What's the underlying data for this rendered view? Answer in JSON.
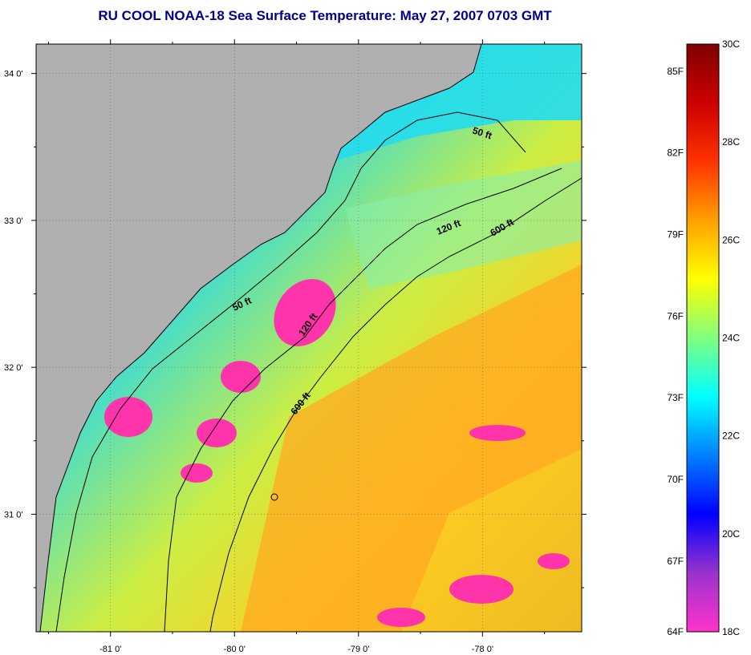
{
  "title": "RU COOL  NOAA-18  Sea Surface Temperature:  May 27, 2007 0703 GMT",
  "map": {
    "lat_ticks": [
      {
        "label": "34 0'",
        "value": 34
      },
      {
        "label": "33 0'",
        "value": 33
      },
      {
        "label": "32 0'",
        "value": 32
      },
      {
        "label": "31 0'",
        "value": 31
      }
    ],
    "lon_ticks": [
      {
        "label": "-81 0'",
        "value": -81
      },
      {
        "label": "-80 0'",
        "value": -80
      },
      {
        "label": "-79 0'",
        "value": -79
      },
      {
        "label": "-78 0'",
        "value": -78
      }
    ],
    "lon_range": [
      -81.6,
      -77.2
    ],
    "lat_range": [
      30.2,
      34.2
    ],
    "grid": true,
    "land_color": "#b0b0b0",
    "contour_labels": [
      "50 ft",
      "50 ft",
      "120 ft",
      "120 ft",
      "600 ft",
      "600 ft"
    ]
  },
  "colorbar": {
    "celsius_labels": [
      "30C",
      "28C",
      "26C",
      "24C",
      "22C",
      "20C",
      "18C"
    ],
    "fahrenheit_labels": [
      "85F",
      "82F",
      "79F",
      "76F",
      "73F",
      "70F",
      "67F",
      "64F"
    ],
    "range_c": [
      18,
      30
    ],
    "colors": [
      "#ff33cc",
      "#9933cc",
      "#0000ff",
      "#0080ff",
      "#00ffff",
      "#80ff80",
      "#ffff00",
      "#ffa000",
      "#ff3300",
      "#cc0000",
      "#800000"
    ]
  }
}
